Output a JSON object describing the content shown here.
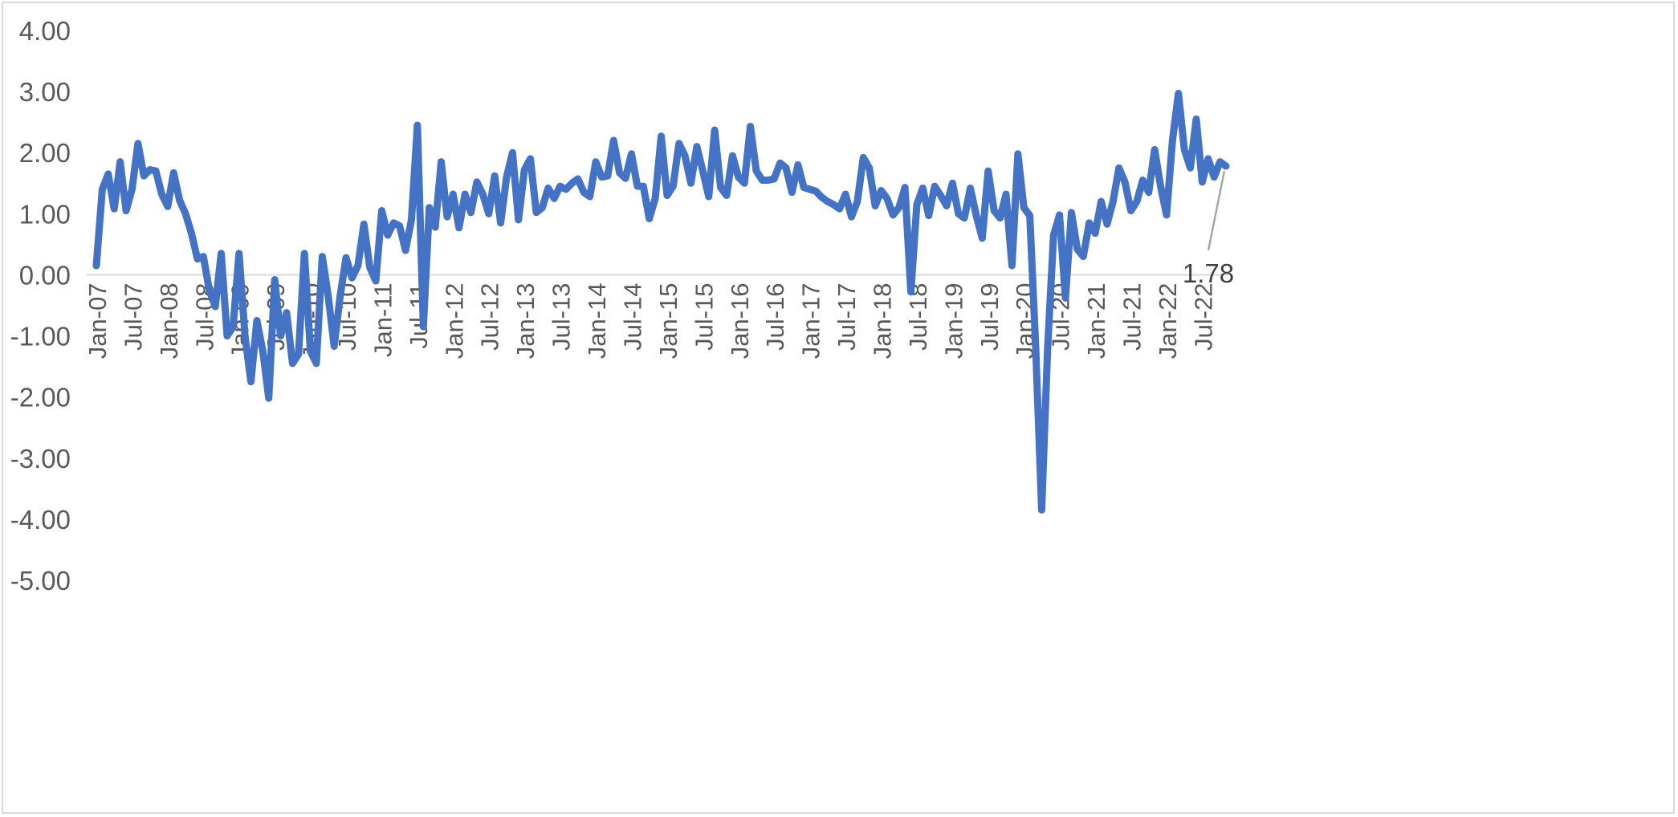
{
  "chart_data": {
    "type": "line",
    "title": "",
    "xlabel": "",
    "ylabel": "",
    "ylim": [
      -5,
      4
    ],
    "yticks": [
      "4.00",
      "3.00",
      "2.00",
      "1.00",
      "0.00",
      "-1.00",
      "-2.00",
      "-3.00",
      "-4.00",
      "-5.00"
    ],
    "xtick_labels": [
      "Jan-07",
      "Jul-07",
      "Jan-08",
      "Jul-08",
      "Jan-09",
      "Jul-09",
      "Jan-10",
      "Jul-10",
      "Jan-11",
      "Jul-11",
      "Jan-12",
      "Jul-12",
      "Jan-13",
      "Jul-13",
      "Jan-14",
      "Jul-14",
      "Jan-15",
      "Jul-15",
      "Jan-16",
      "Jul-16",
      "Jan-17",
      "Jul-17",
      "Jan-18",
      "Jul-18",
      "Jan-19",
      "Jul-19",
      "Jan-20",
      "Jul-20",
      "Jan-21",
      "Jul-21",
      "Jan-22",
      "Jul-22"
    ],
    "grid": false,
    "legend": "none",
    "line_color": "#4472C4",
    "series": [
      {
        "values": [
          0.15,
          1.4,
          1.65,
          1.08,
          1.85,
          1.05,
          1.4,
          2.15,
          1.62,
          1.72,
          1.7,
          1.32,
          1.12,
          1.67,
          1.22,
          1.0,
          0.68,
          0.26,
          0.3,
          -0.25,
          -0.52,
          0.35,
          -1.0,
          -0.85,
          0.35,
          -1.0,
          -1.75,
          -0.75,
          -1.25,
          -2.02,
          -0.08,
          -1.0,
          -0.62,
          -1.45,
          -1.3,
          0.35,
          -1.25,
          -1.45,
          0.3,
          -0.35,
          -1.17,
          -0.35,
          0.28,
          -0.05,
          0.15,
          0.83,
          0.12,
          -0.1,
          1.05,
          0.65,
          0.85,
          0.8,
          0.4,
          0.9,
          2.45,
          -0.85,
          1.1,
          0.78,
          1.85,
          0.95,
          1.32,
          0.77,
          1.32,
          1.02,
          1.52,
          1.32,
          1.0,
          1.62,
          0.85,
          1.6,
          2.0,
          0.9,
          1.72,
          1.9,
          1.02,
          1.1,
          1.42,
          1.25,
          1.45,
          1.4,
          1.5,
          1.57,
          1.35,
          1.28,
          1.85,
          1.6,
          1.62,
          2.2,
          1.67,
          1.58,
          1.98,
          1.45,
          1.45,
          0.92,
          1.25,
          2.27,
          1.3,
          1.45,
          2.15,
          1.95,
          1.5,
          2.1,
          1.7,
          1.28,
          2.37,
          1.43,
          1.3,
          1.95,
          1.6,
          1.5,
          2.43,
          1.7,
          1.55,
          1.55,
          1.57,
          1.83,
          1.75,
          1.35,
          1.8,
          1.43,
          1.4,
          1.37,
          1.27,
          1.2,
          1.15,
          1.08,
          1.32,
          0.95,
          1.2,
          1.92,
          1.75,
          1.13,
          1.38,
          1.25,
          0.98,
          1.1,
          1.43,
          -0.28,
          1.15,
          1.42,
          0.97,
          1.45,
          1.3,
          1.13,
          1.5,
          1.0,
          0.93,
          1.42,
          0.97,
          0.6,
          1.7,
          1.05,
          0.93,
          1.32,
          0.15,
          1.98,
          1.1,
          0.97,
          -1.2,
          -3.85,
          -1.2,
          0.65,
          0.98,
          -0.38,
          1.02,
          0.42,
          0.3,
          0.85,
          0.68,
          1.2,
          0.83,
          1.2,
          1.75,
          1.52,
          1.05,
          1.2,
          1.55,
          1.35,
          2.05,
          1.45,
          0.98,
          2.2,
          2.97,
          2.05,
          1.75,
          2.55,
          1.52,
          1.9,
          1.6,
          1.85,
          1.78
        ]
      }
    ],
    "annotation": {
      "text": "1.78"
    }
  }
}
